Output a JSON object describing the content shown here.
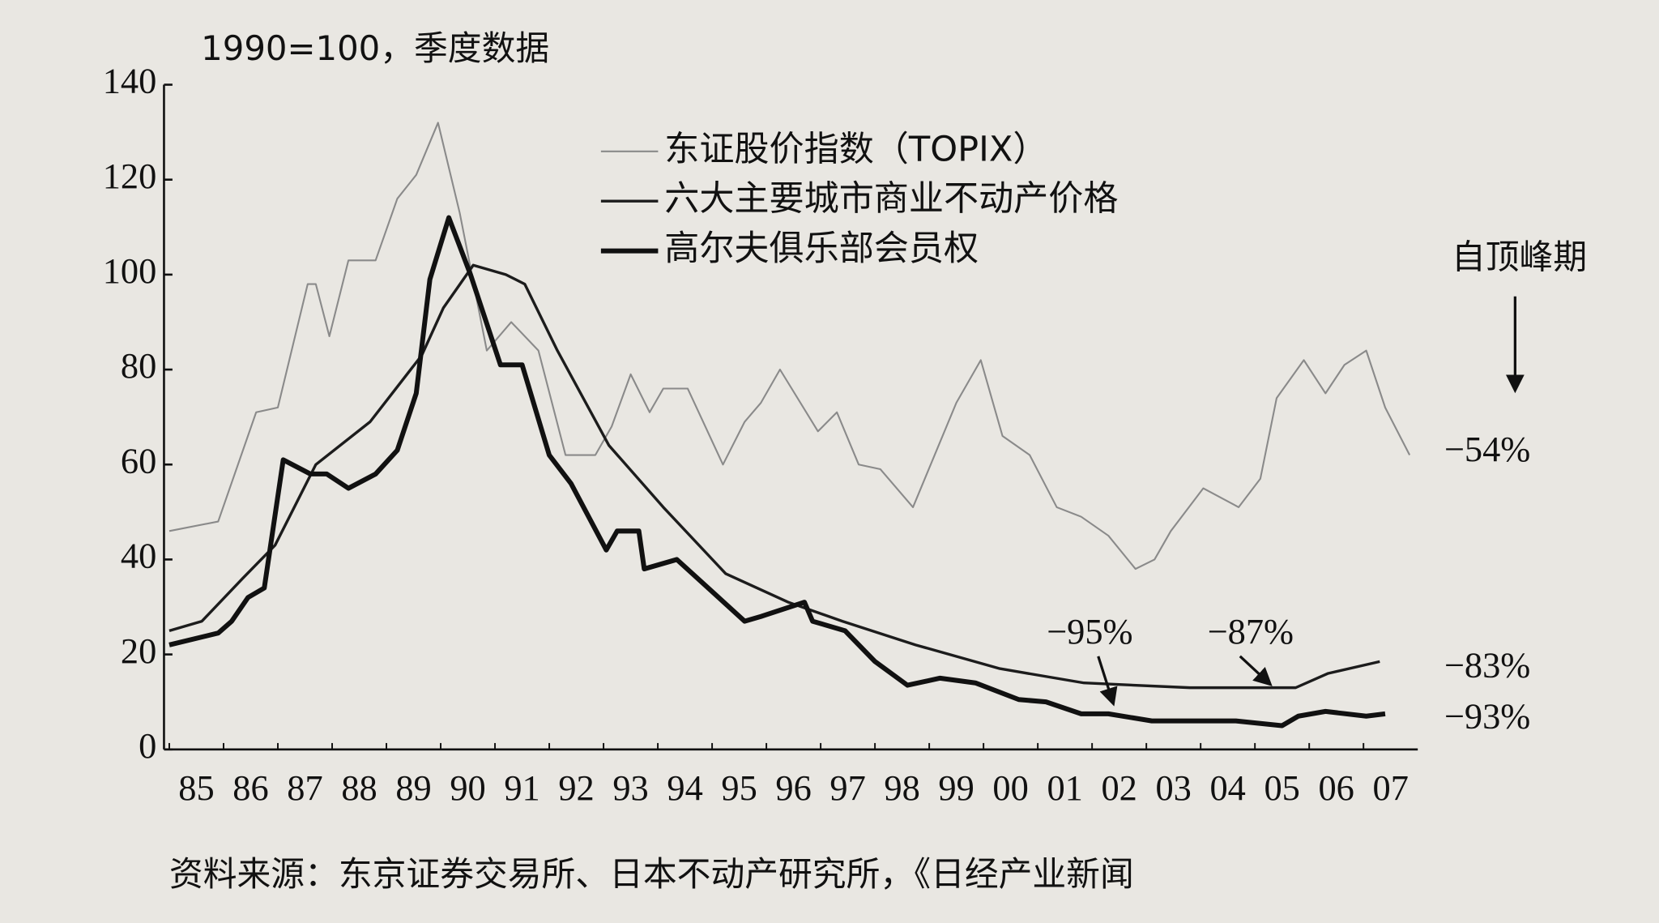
{
  "chart_data": {
    "type": "line",
    "title": "1990=100，季度数据",
    "source": "资料来源：东京证券交易所、日本不动产研究所，《日经产业新闻",
    "xlim": [
      1985,
      2008
    ],
    "xticks": [
      {
        "value": 1985,
        "label": "85"
      },
      {
        "value": 1986,
        "label": "86"
      },
      {
        "value": 1987,
        "label": "87"
      },
      {
        "value": 1988,
        "label": "88"
      },
      {
        "value": 1989,
        "label": "89"
      },
      {
        "value": 1990,
        "label": "90"
      },
      {
        "value": 1991,
        "label": "91"
      },
      {
        "value": 1992,
        "label": "92"
      },
      {
        "value": 1993,
        "label": "93"
      },
      {
        "value": 1994,
        "label": "94"
      },
      {
        "value": 1995,
        "label": "95"
      },
      {
        "value": 1996,
        "label": "96"
      },
      {
        "value": 1997,
        "label": "97"
      },
      {
        "value": 1998,
        "label": "98"
      },
      {
        "value": 1999,
        "label": "99"
      },
      {
        "value": 2000,
        "label": "00"
      },
      {
        "value": 2001,
        "label": "01"
      },
      {
        "value": 2002,
        "label": "02"
      },
      {
        "value": 2003,
        "label": "03"
      },
      {
        "value": 2004,
        "label": "04"
      },
      {
        "value": 2005,
        "label": "05"
      },
      {
        "value": 2006,
        "label": "06"
      },
      {
        "value": 2007,
        "label": "07"
      }
    ],
    "ylim": [
      0,
      140
    ],
    "yticks": [
      0,
      20,
      40,
      60,
      80,
      100,
      120,
      140
    ],
    "grid": false,
    "series": [
      {
        "name": "东证股价指数（TOPIX）",
        "color": "#8a8a8a",
        "x": [
          1985.0,
          1985.9,
          1986.6,
          1987.0,
          1987.55,
          1987.7,
          1987.95,
          1988.3,
          1988.8,
          1989.2,
          1989.55,
          1989.95,
          1990.35,
          1990.85,
          1991.3,
          1991.8,
          1992.3,
          1992.85,
          1993.15,
          1993.5,
          1993.85,
          1994.1,
          1994.55,
          1995.2,
          1995.6,
          1995.9,
          1996.25,
          1996.95,
          1997.3,
          1997.7,
          1998.1,
          1998.7,
          1999.5,
          1999.95,
          2000.35,
          2000.85,
          2001.35,
          2001.8,
          2002.3,
          2002.8,
          2003.15,
          2003.45,
          2004.05,
          2004.7,
          2005.1,
          2005.4,
          2005.9,
          2006.3,
          2006.65,
          2007.05,
          2007.4,
          2007.85
        ],
        "values": [
          46,
          48,
          71,
          72,
          98,
          98,
          87,
          103,
          103,
          116,
          121,
          132,
          113,
          84,
          90,
          84,
          62,
          62,
          68,
          79,
          71,
          76,
          76,
          60,
          69,
          73,
          80,
          67,
          71,
          60,
          59,
          51,
          73,
          82,
          66,
          62,
          51,
          49,
          45,
          38,
          40,
          46,
          55,
          51,
          57,
          74,
          82,
          75,
          81,
          84,
          72,
          62
        ]
      },
      {
        "name": "六大主要城市商业不动产价格",
        "color": "#1c1c1c",
        "x": [
          1985.0,
          1985.6,
          1986.35,
          1986.95,
          1987.7,
          1988.7,
          1989.65,
          1990.05,
          1990.6,
          1991.2,
          1991.55,
          1992.15,
          1993.1,
          1994.1,
          1995.25,
          1996.4,
          1997.4,
          1998.75,
          2000.3,
          2001.85,
          2003.8,
          2005.75,
          2006.35,
          2007.3
        ],
        "values": [
          25,
          27,
          36,
          43,
          60,
          69,
          83,
          93,
          102,
          100,
          98,
          84,
          64,
          51,
          37,
          31,
          27,
          22,
          17,
          14,
          13,
          13,
          16,
          18.5
        ]
      },
      {
        "name": "高尔夫俱乐部会员权",
        "color": "#111111",
        "x": [
          1985.0,
          1985.9,
          1986.15,
          1986.45,
          1986.75,
          1987.1,
          1987.6,
          1987.9,
          1988.3,
          1988.8,
          1989.2,
          1989.55,
          1989.8,
          1990.15,
          1990.55,
          1991.1,
          1991.5,
          1992.0,
          1992.4,
          1993.05,
          1993.25,
          1993.65,
          1993.75,
          1994.35,
          1995.6,
          1995.9,
          1996.7,
          1996.85,
          1997.45,
          1998.0,
          1998.6,
          1999.2,
          1999.85,
          2000.65,
          2001.15,
          2001.8,
          2002.3,
          2003.1,
          2004.65,
          2005.5,
          2005.8,
          2006.3,
          2007.05,
          2007.4
        ],
        "values": [
          22,
          24.5,
          27,
          32,
          34,
          61,
          58,
          58,
          55,
          58,
          63,
          75,
          99,
          112,
          100,
          81,
          81,
          62,
          56,
          42,
          46,
          46,
          38,
          40,
          27,
          28,
          31,
          27,
          25,
          18.5,
          13.5,
          15,
          14,
          10.5,
          10,
          7.5,
          7.5,
          6,
          6,
          5,
          7,
          8,
          7,
          7.5
        ]
      }
    ],
    "annotations": [
      {
        "text": "自顶峰期"
      },
      {
        "text": "−54%"
      },
      {
        "text": "−83%"
      },
      {
        "text": "−93%"
      },
      {
        "text": "−95%"
      },
      {
        "text": "−87%"
      }
    ]
  }
}
